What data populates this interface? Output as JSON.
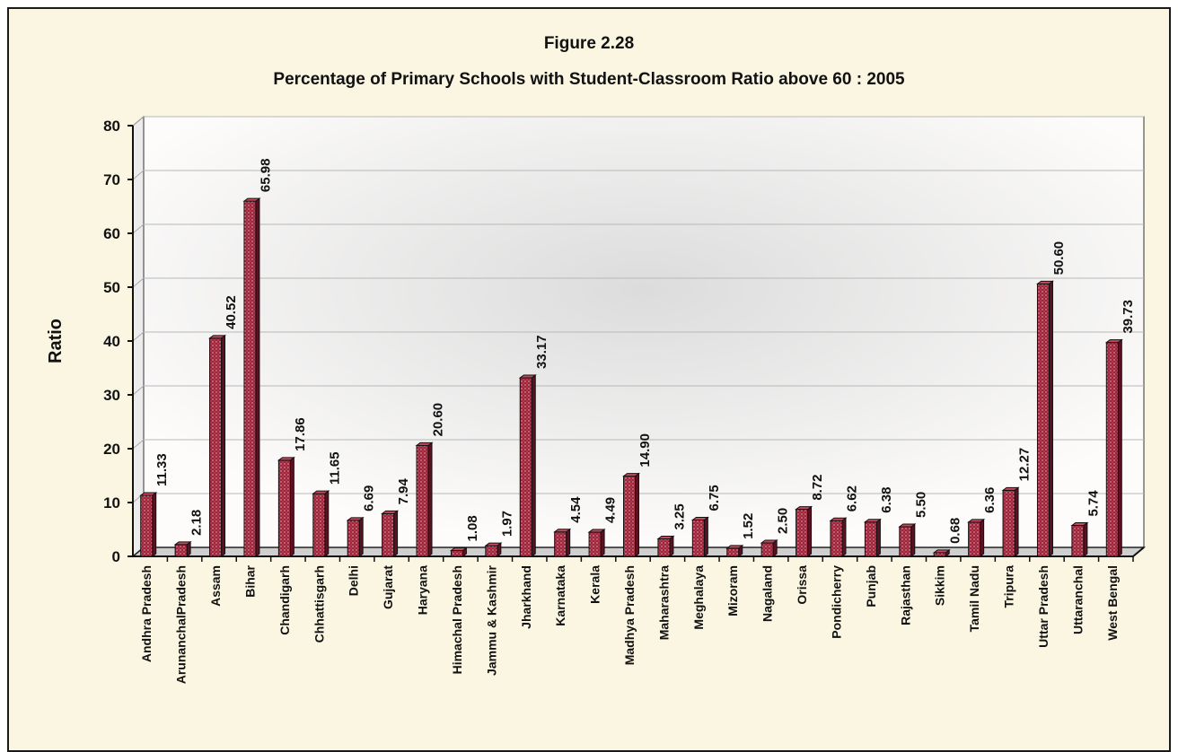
{
  "chart_data": {
    "type": "bar",
    "figure_label": "Figure 2.28",
    "title": "Percentage of Primary Schools with Student-Classroom Ratio above 60 : 2005",
    "xlabel": "",
    "ylabel": "Ratio",
    "ylim": [
      0,
      80
    ],
    "yticks": [
      "0",
      "10",
      "20",
      "30",
      "40",
      "50",
      "60",
      "70",
      "80"
    ],
    "grid": true,
    "categories": [
      "Andhra Pradesh",
      "ArunanchalPradesh",
      "Assam",
      "Bihar",
      "Chandigarh",
      "Chhattisgarh",
      "Delhi",
      "Gujarat",
      "Haryana",
      "Himachal Pradesh",
      "Jammu & Kashmir",
      "Jharkhand",
      "Karnataka",
      "Kerala",
      "Madhya Pradesh",
      "Maharashtra",
      "Meghalaya",
      "Mizoram",
      "Nagaland",
      "Orissa",
      "Pondicherry",
      "Punjab",
      "Rajasthan",
      "Sikkim",
      "Tamil Nadu",
      "Tripura",
      "Uttar Pradesh",
      "Uttaranchal",
      "West Bengal"
    ],
    "values": [
      11.33,
      2.18,
      40.52,
      65.98,
      17.86,
      11.65,
      6.69,
      7.94,
      20.6,
      1.08,
      1.97,
      33.17,
      4.54,
      4.49,
      14.9,
      3.25,
      6.75,
      1.52,
      2.5,
      8.72,
      6.62,
      6.38,
      5.5,
      0.68,
      6.36,
      12.27,
      50.6,
      5.74,
      39.73
    ],
    "value_labels": [
      "11.33",
      "2.18",
      "40.52",
      "65.98",
      "17.86",
      "11.65",
      "6.69",
      "7.94",
      "20.60",
      "1.08",
      "1.97",
      "33.17",
      "4.54",
      "4.49",
      "14.90",
      "3.25",
      "6.75",
      "1.52",
      "2.50",
      "8.72",
      "6.62",
      "6.38",
      "5.50",
      "0.68",
      "6.36",
      "12.27",
      "50.60",
      "5.74",
      "39.73"
    ],
    "bar_color": "#a0243a"
  }
}
